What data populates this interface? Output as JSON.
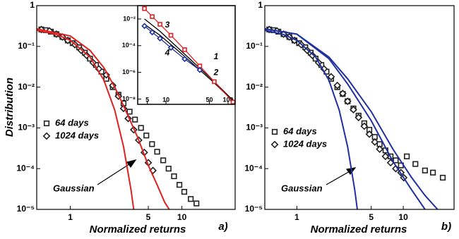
{
  "chart_data": [
    {
      "type": "scatter",
      "x_label": "Normalized returns",
      "y_label": "Distribution",
      "annotation": "Gaussian",
      "panel_label": "a)",
      "log_x": true,
      "log_y": true,
      "legend": "center-left",
      "xlim": [
        0.5,
        30
      ],
      "ylim": [
        1e-05,
        1
      ],
      "xticks": [
        1,
        5,
        10
      ],
      "yticks": [
        1,
        {
          "value": 0.1,
          "label": "10⁻¹"
        },
        {
          "value": 0.01,
          "label": "10⁻²"
        },
        {
          "value": 0.001,
          "label": "10⁻³"
        },
        {
          "value": 0.0001,
          "label": "10⁻⁴"
        },
        {
          "value": 1e-05,
          "label": "10⁻⁵"
        }
      ],
      "series": [
        {
          "name": "64 days",
          "marker": "square",
          "color": "#222222",
          "x": [
            0.55,
            0.6,
            0.67,
            0.75,
            0.85,
            0.95,
            1.05,
            1.2,
            1.35,
            1.5,
            1.7,
            1.9,
            2.1,
            2.4,
            2.7,
            3.0,
            3.4,
            3.8,
            4.3,
            4.8,
            5.4,
            6.0,
            6.8,
            7.6,
            8.5,
            9.5,
            10.5,
            12,
            13.5
          ],
          "values": [
            0.26,
            0.25,
            0.23,
            0.2,
            0.17,
            0.14,
            0.12,
            0.095,
            0.07,
            0.05,
            0.035,
            0.024,
            0.016,
            0.01,
            0.0065,
            0.004,
            0.0025,
            0.0016,
            0.001,
            0.00065,
            0.0004,
            0.00026,
            0.00016,
            0.0001,
            6.5e-05,
            4e-05,
            2.7e-05,
            1.8e-05,
            1.4e-05
          ]
        },
        {
          "name": "1024 days",
          "marker": "diamond",
          "color": "#222222",
          "x": [
            0.55,
            0.65,
            0.75,
            0.85,
            0.95,
            1.1,
            1.25,
            1.4,
            1.6,
            1.8,
            2.1,
            2.4,
            2.7,
            3.0,
            3.3,
            3.7,
            4.1,
            4.6,
            5.0,
            5.5
          ],
          "values": [
            0.26,
            0.24,
            0.2,
            0.17,
            0.14,
            0.11,
            0.08,
            0.06,
            0.04,
            0.028,
            0.02,
            0.011,
            0.006,
            0.003,
            0.0017,
            0.0009,
            0.0005,
            0.00025,
            0.00014,
            9e-05
          ]
        },
        {
          "marker": "line",
          "color": "#e02020",
          "x": [
            0.5,
            0.75,
            1,
            1.5,
            2,
            2.5,
            3,
            3.5,
            3.8
          ],
          "values": [
            0.248,
            0.196,
            0.141,
            0.0551,
            0.0148,
            0.00273,
            0.000345,
            3e-05,
            5.8e-06
          ]
        },
        {
          "marker": "line",
          "color": "#e02020",
          "x": [
            0.5,
            1,
            1.5,
            2,
            2.5,
            3,
            4,
            5,
            6,
            7,
            7.7
          ],
          "values": [
            0.27,
            0.18,
            0.08,
            0.03,
            0.01,
            0.0035,
            0.0006,
            0.00012,
            4e-05,
            1.5e-05,
            1e-05
          ]
        }
      ]
    },
    {
      "type": "scatter",
      "log_x": true,
      "log_y": true,
      "annotations": [
        "1",
        "2",
        "3",
        "4"
      ],
      "xlim": [
        3.5,
        130
      ],
      "ylim": [
        4e-09,
        0.1
      ],
      "xticks": [
        5,
        10,
        50,
        100
      ],
      "yticks": [
        {
          "value": 0.01,
          "label": "10⁻²"
        },
        {
          "value": 0.0001,
          "label": "10⁻⁴"
        },
        {
          "value": 1e-06,
          "label": "10⁻⁶"
        },
        {
          "value": 1e-08,
          "label": "10⁻⁸"
        }
      ],
      "series": [
        {
          "marker": "line",
          "color": "#000000",
          "x": [
            4.5,
            8,
            15,
            30,
            60,
            120
          ],
          "values": [
            0.01,
            0.0012,
            8e-05,
            4e-06,
            2e-07,
            8e-09
          ]
        },
        {
          "marker": "line",
          "color": "#000000",
          "x": [
            4.5,
            8,
            15,
            30,
            60,
            120
          ],
          "values": [
            0.004,
            0.0006,
            5e-05,
            2.8e-06,
            1.6e-07,
            7e-09
          ]
        },
        {
          "marker": "square",
          "color": "#e02020",
          "x": [
            4.5,
            6,
            8,
            12,
            20,
            35,
            60,
            120
          ],
          "values": [
            0.06,
            0.015,
            0.004,
            0.0006,
            5e-05,
            3e-06,
            2e-07,
            6e-09
          ]
        },
        {
          "marker": "diamond",
          "color": "#2030a0",
          "x": [
            4.5,
            6,
            8,
            12,
            20,
            35
          ],
          "values": [
            0.003,
            0.001,
            0.00035,
            7e-05,
            1e-05,
            1.5e-06
          ]
        }
      ]
    },
    {
      "type": "scatter",
      "x_label": "Normalized returns",
      "annotation": "Gaussian",
      "panel_label": "b)",
      "log_x": true,
      "log_y": true,
      "legend": "center-left",
      "xlim": [
        0.5,
        30
      ],
      "ylim": [
        1e-05,
        1
      ],
      "xticks": [
        1,
        5,
        10
      ],
      "yticks": [
        1,
        {
          "value": 0.1,
          "label": "10⁻¹"
        },
        {
          "value": 0.01,
          "label": "10⁻²"
        },
        {
          "value": 0.001,
          "label": "10⁻³"
        },
        {
          "value": 0.0001,
          "label": "10⁻⁴"
        },
        {
          "value": 1e-05,
          "label": "10⁻⁵"
        }
      ],
      "series": [
        {
          "name": "64 days",
          "marker": "square",
          "color": "#222222",
          "x": [
            0.55,
            0.6,
            0.67,
            0.75,
            0.85,
            0.95,
            1.05,
            1.2,
            1.35,
            1.5,
            1.7,
            1.9,
            2.1,
            2.4,
            2.7,
            3.0,
            3.4,
            3.8,
            4.3,
            4.8,
            5.4,
            6.0,
            6.8,
            7.6,
            8.5,
            9.5,
            10.8,
            13,
            16,
            19,
            23.5
          ],
          "values": [
            0.26,
            0.25,
            0.23,
            0.2,
            0.17,
            0.14,
            0.12,
            0.095,
            0.07,
            0.05,
            0.035,
            0.024,
            0.016,
            0.01,
            0.0068,
            0.0045,
            0.003,
            0.002,
            0.0013,
            0.0009,
            0.0006,
            0.0004,
            0.00028,
            0.0002,
            0.00016,
            0.00012,
            0.0002,
            0.00013,
            9e-05,
            8e-05,
            6e-05
          ]
        },
        {
          "name": "1024 days",
          "marker": "diamond",
          "color": "#222222",
          "x": [
            0.55,
            0.65,
            0.75,
            0.85,
            0.95,
            1.1,
            1.25,
            1.4,
            1.6,
            1.8,
            2.1,
            2.4,
            2.7,
            3.0,
            3.4,
            3.8,
            4.3,
            4.8,
            5.4,
            6.0,
            6.8,
            7.6,
            8.5,
            9.5,
            10.1
          ],
          "values": [
            0.26,
            0.24,
            0.2,
            0.17,
            0.14,
            0.11,
            0.08,
            0.06,
            0.04,
            0.028,
            0.018,
            0.011,
            0.007,
            0.0045,
            0.0028,
            0.0018,
            0.0011,
            0.0007,
            0.00045,
            0.0003,
            0.0002,
            0.00014,
            0.0001,
            8e-05,
            6e-05
          ]
        },
        {
          "marker": "line",
          "color": "#2030a0",
          "x": [
            0.5,
            0.75,
            1,
            1.5,
            2,
            2.5,
            3,
            3.5,
            3.8
          ],
          "values": [
            0.248,
            0.196,
            0.141,
            0.0551,
            0.0148,
            0.00273,
            0.000345,
            3e-05,
            5.8e-06
          ]
        },
        {
          "marker": "line",
          "color": "#2030a0",
          "x": [
            0.5,
            1,
            2,
            3,
            5,
            8,
            12,
            16
          ],
          "values": [
            0.27,
            0.2,
            0.05,
            0.012,
            0.0015,
            0.00015,
            3e-05,
            1e-05
          ]
        },
        {
          "marker": "line",
          "color": "#2030a0",
          "x": [
            0.5,
            1,
            2,
            3,
            5,
            8,
            12,
            16,
            21
          ],
          "values": [
            0.27,
            0.2,
            0.055,
            0.016,
            0.0025,
            0.0003,
            6e-05,
            2.2e-05,
            1e-05
          ]
        }
      ]
    }
  ]
}
